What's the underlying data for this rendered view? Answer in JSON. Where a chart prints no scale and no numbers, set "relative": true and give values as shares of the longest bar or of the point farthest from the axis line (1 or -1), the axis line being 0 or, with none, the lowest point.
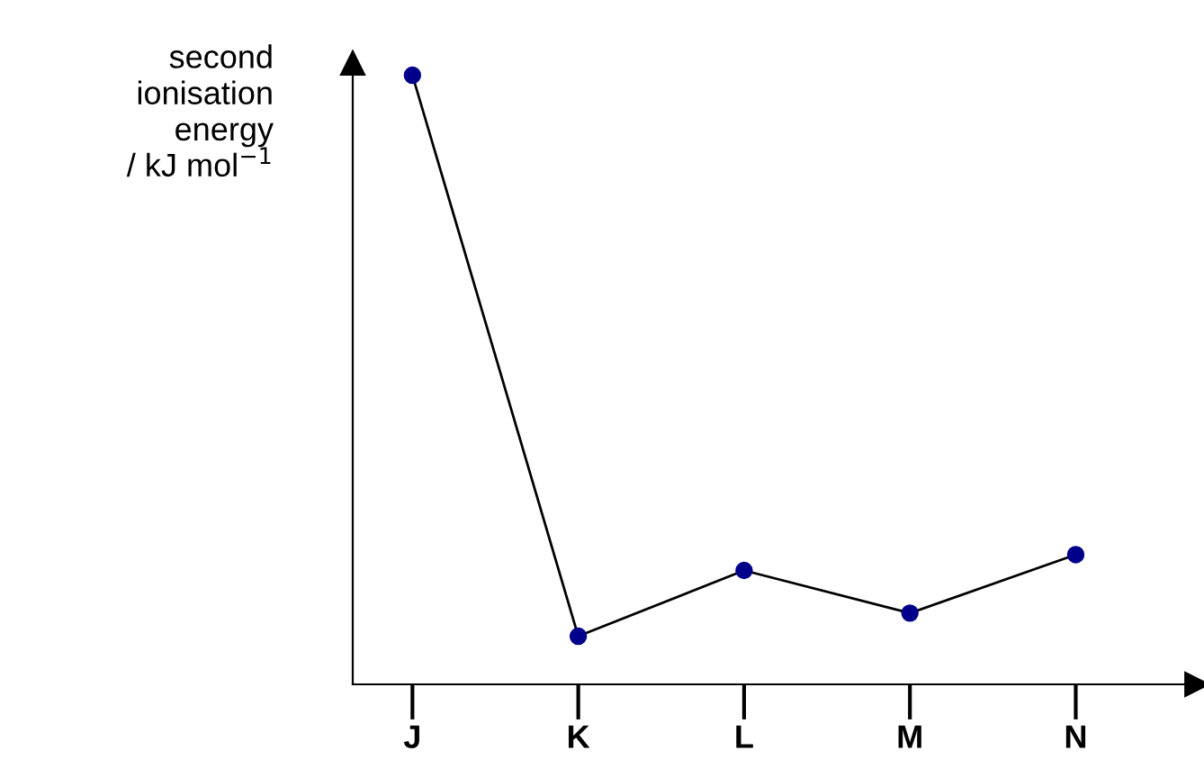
{
  "chart_data": {
    "type": "line",
    "ylabel": "second\nionisation\nenergy\n/ kJ mol$^{−1}$",
    "relative": true,
    "categories": [
      "J",
      "K",
      "L",
      "M",
      "N"
    ],
    "series": [
      {
        "color": "#00008b",
        "values": [
          1,
          0.079,
          0.187,
          0.117,
          0.213
        ]
      }
    ],
    "marker": "circle",
    "line_style": "solid",
    "grid": false,
    "legend": false
  }
}
